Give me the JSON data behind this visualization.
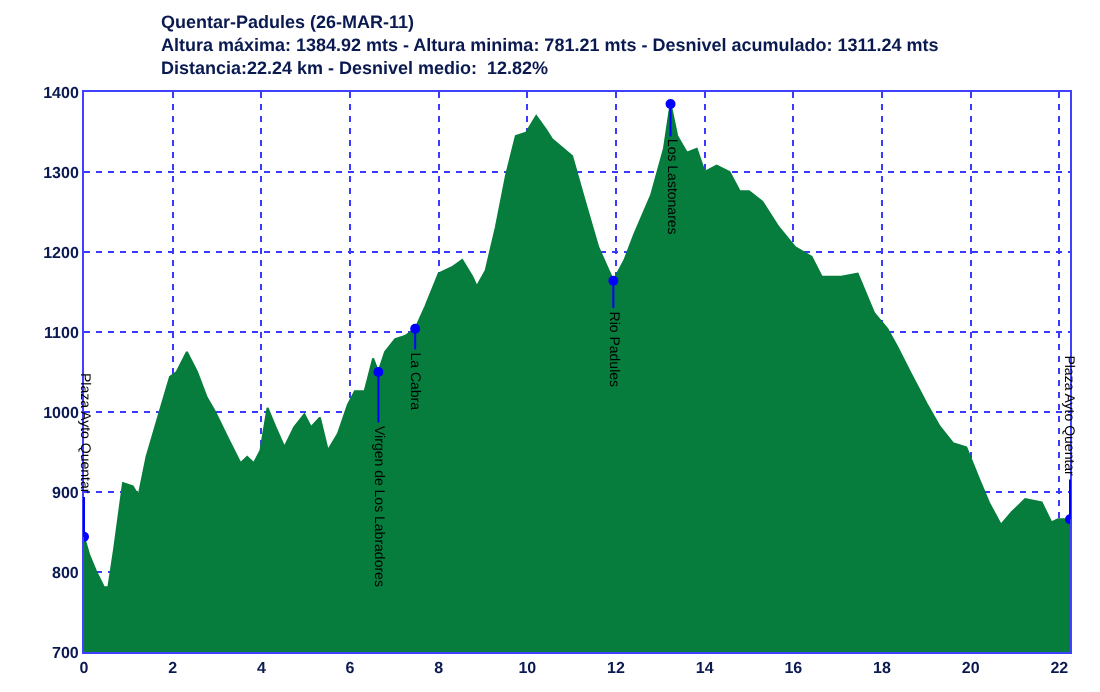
{
  "chart_data": {
    "type": "area",
    "title": "Quentar-Padules (26-MAR-11)",
    "subtitle": "Altura máxima: 1384.92 mts - Altura minima: 781.21 mts - Desnivel acumulado: 1311.24 mts\nDistancia:22.24 km - Desnivel medio:  12.82%",
    "series": [
      {
        "color": "#067d3c",
        "x": [
          0,
          0.12,
          0.27,
          0.45,
          0.55,
          0.68,
          0.88,
          1.1,
          1.23,
          1.41,
          1.71,
          1.94,
          2.09,
          2.32,
          2.55,
          2.77,
          2.95,
          3.23,
          3.53,
          3.68,
          3.83,
          3.98,
          4.14,
          4.32,
          4.52,
          4.74,
          4.97,
          5.12,
          5.32,
          5.5,
          5.73,
          5.95,
          6.11,
          6.33,
          6.52,
          6.64,
          6.79,
          7.02,
          7.24,
          7.47,
          7.7,
          8.0,
          8.3,
          8.53,
          8.76,
          8.86,
          9.06,
          9.29,
          9.52,
          9.74,
          9.97,
          10.2,
          10.42,
          10.56,
          11.01,
          11.3,
          11.6,
          11.94,
          12.19,
          12.41,
          12.79,
          13.08,
          13.23,
          13.38,
          13.6,
          13.82,
          14.0,
          14.27,
          14.56,
          14.79,
          15.0,
          15.3,
          15.67,
          16.04,
          16.41,
          16.64,
          17.08,
          17.45,
          17.82,
          18.12,
          18.34,
          18.64,
          19.01,
          19.3,
          19.6,
          19.9,
          20.19,
          20.41,
          20.68,
          20.93,
          21.23,
          21.6,
          21.82,
          21.97,
          22.24
        ],
        "values": [
          844,
          821,
          801,
          781,
          781,
          829,
          911,
          907,
          895,
          944,
          1001,
          1044,
          1050,
          1075,
          1050,
          1018,
          1001,
          969,
          936,
          944,
          936,
          952,
          1005,
          981,
          956,
          981,
          997,
          981,
          993,
          952,
          973,
          1009,
          1026,
          1026,
          1067,
          1050,
          1075,
          1091,
          1095,
          1104,
          1132,
          1173,
          1181,
          1190,
          1169,
          1157,
          1177,
          1231,
          1296,
          1345,
          1349,
          1370,
          1353,
          1341,
          1320,
          1263,
          1206,
          1164,
          1190,
          1222,
          1271,
          1329,
          1385,
          1345,
          1324,
          1329,
          1300,
          1308,
          1300,
          1276,
          1276,
          1263,
          1231,
          1206,
          1194,
          1169,
          1169,
          1173,
          1124,
          1104,
          1082,
          1049,
          1010,
          982,
          961,
          956,
          916,
          887,
          859,
          875,
          891,
          887,
          862,
          866,
          866
        ]
      },
      {
        "type": "scatter",
        "color": "#0000ff",
        "marker": "circle",
        "x": [
          0,
          6.64,
          7.47,
          11.94,
          13.23,
          22.24
        ],
        "values": [
          844,
          1050,
          1104,
          1164,
          1385,
          866
        ]
      }
    ],
    "annotations": [
      {
        "text": "Plaza Ayto Quentar",
        "x": 0,
        "y": 844
      },
      {
        "text": "Virgen de Los Labradores",
        "x": 6.64,
        "y": 1050
      },
      {
        "text": "La Cabra",
        "x": 7.47,
        "y": 1104
      },
      {
        "text": "Rio Padules",
        "x": 11.94,
        "y": 1164
      },
      {
        "text": "Los Lastonares",
        "x": 13.23,
        "y": 1385
      },
      {
        "text": "Plaza Ayto Quentar",
        "x": 22.24,
        "y": 866
      }
    ],
    "xlim": [
      0,
      22.24
    ],
    "xticks": [
      0,
      2,
      4,
      6,
      8,
      10,
      12,
      14,
      16,
      18,
      20,
      22
    ],
    "ylim": [
      700,
      1400
    ],
    "yticks": [
      700,
      800,
      900,
      1000,
      1100,
      1200,
      1300,
      1400
    ],
    "grid": true
  }
}
